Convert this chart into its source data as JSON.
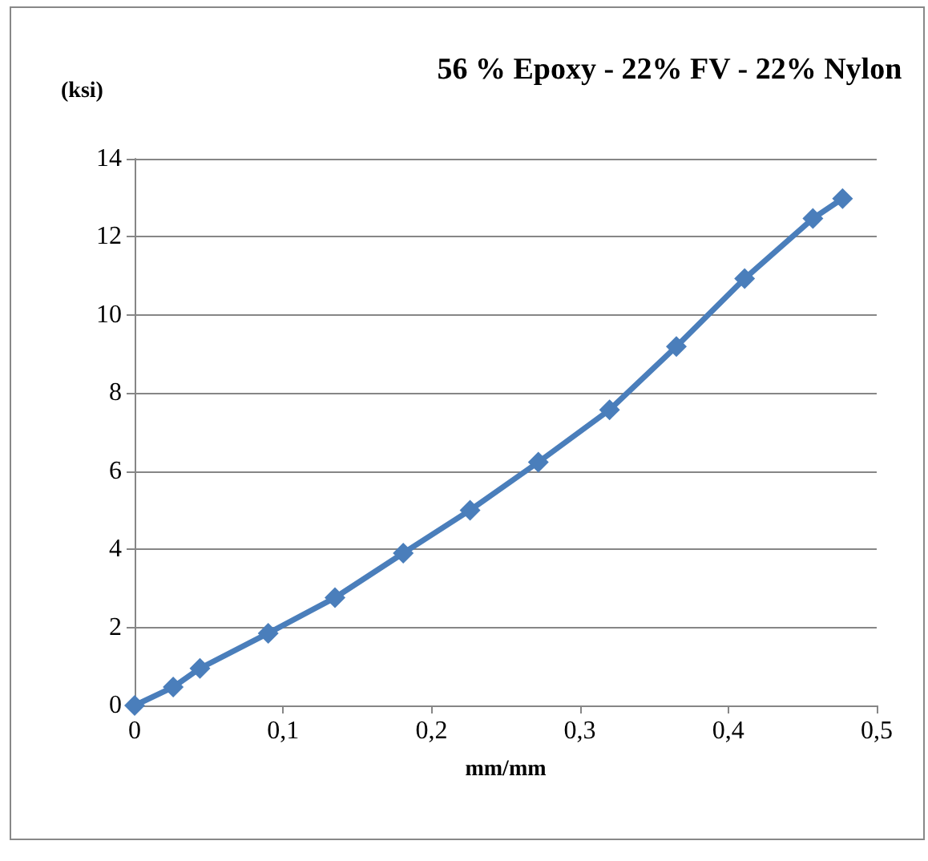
{
  "chart_data": {
    "type": "line",
    "title": "56 % Epoxy - 22% FV - 22% Nylon",
    "xlabel": "mm/mm",
    "ylabel": "(ksi)",
    "x": [
      0,
      0.026,
      0.044,
      0.09,
      0.135,
      0.181,
      0.226,
      0.272,
      0.32,
      0.365,
      0.411,
      0.457,
      0.477
    ],
    "series": [
      {
        "color": "#4a7ebb",
        "values": [
          0,
          0.47,
          0.95,
          1.85,
          2.76,
          3.9,
          5.0,
          6.23,
          7.57,
          9.19,
          10.93,
          12.47,
          12.98
        ]
      }
    ],
    "xlim": [
      0,
      0.5
    ],
    "xticks": [
      0,
      {
        "value": 0.1,
        "label": "0,1"
      },
      {
        "value": 0.2,
        "label": "0,2"
      },
      {
        "value": 0.3,
        "label": "0,3"
      },
      {
        "value": 0.4,
        "label": "0,4"
      },
      {
        "value": 0.5,
        "label": "0,5"
      }
    ],
    "ylim": [
      0,
      14
    ],
    "yticks": [
      0,
      2,
      4,
      6,
      8,
      10,
      12,
      14
    ],
    "grid": "y",
    "marker": "diamond",
    "line_style": "solid"
  }
}
